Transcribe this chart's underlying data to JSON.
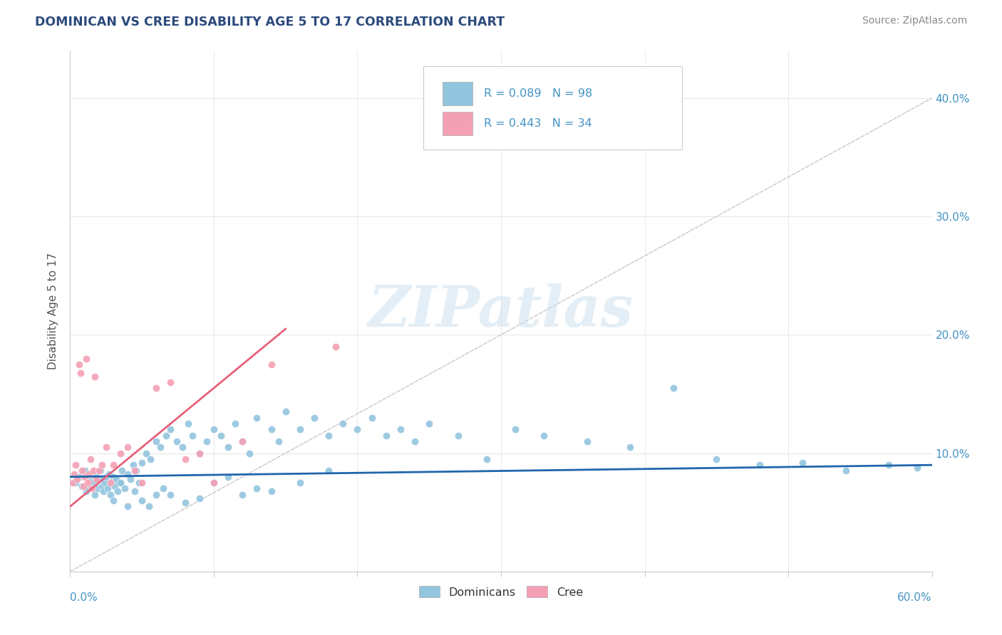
{
  "title": "DOMINICAN VS CREE DISABILITY AGE 5 TO 17 CORRELATION CHART",
  "source": "Source: ZipAtlas.com",
  "ylabel": "Disability Age 5 to 17",
  "xlim": [
    0.0,
    60.0
  ],
  "ylim": [
    0.0,
    44.0
  ],
  "legend_text1": "R = 0.089   N = 98",
  "legend_text2": "R = 0.443   N = 34",
  "dominican_color": "#92c5de",
  "cree_color": "#f4a0b4",
  "dominican_line_color": "#2166ac",
  "cree_line_color": "#e8607a",
  "ref_line_color": "#c8c8c8",
  "title_color": "#2c4a7c",
  "source_color": "#888888",
  "tick_label_color": "#4393c3",
  "legend_text_color": "#4393c3",
  "dominican_x": [
    0.4,
    0.6,
    0.8,
    1.0,
    1.1,
    1.2,
    1.4,
    1.5,
    1.6,
    1.7,
    1.8,
    1.9,
    2.0,
    2.1,
    2.2,
    2.3,
    2.4,
    2.5,
    2.6,
    2.7,
    2.8,
    2.9,
    3.0,
    3.1,
    3.2,
    3.3,
    3.5,
    3.6,
    3.8,
    4.0,
    4.2,
    4.4,
    4.6,
    4.8,
    5.0,
    5.3,
    5.6,
    6.0,
    6.3,
    6.7,
    7.0,
    7.4,
    7.8,
    8.2,
    8.5,
    9.0,
    9.5,
    10.0,
    10.5,
    11.0,
    11.5,
    12.0,
    12.5,
    13.0,
    14.0,
    14.5,
    15.0,
    16.0,
    17.0,
    18.0,
    19.0,
    20.0,
    21.0,
    22.0,
    23.0,
    24.0,
    25.0,
    27.0,
    29.0,
    31.0,
    33.0,
    36.0,
    39.0,
    42.0,
    45.0,
    48.0,
    51.0,
    54.0,
    57.0,
    59.0,
    3.0,
    3.5,
    4.0,
    4.5,
    5.0,
    5.5,
    6.0,
    6.5,
    7.0,
    8.0,
    9.0,
    10.0,
    11.0,
    12.0,
    13.0,
    14.0,
    16.0,
    18.0
  ],
  "dominican_y": [
    7.5,
    8.0,
    7.2,
    8.5,
    6.8,
    7.0,
    7.8,
    8.2,
    7.5,
    6.5,
    8.0,
    7.0,
    7.8,
    8.5,
    7.2,
    6.8,
    7.5,
    8.0,
    7.0,
    8.2,
    6.5,
    7.5,
    8.0,
    7.2,
    7.8,
    6.8,
    7.5,
    8.5,
    7.0,
    8.2,
    7.8,
    9.0,
    8.5,
    7.5,
    9.2,
    10.0,
    9.5,
    11.0,
    10.5,
    11.5,
    12.0,
    11.0,
    10.5,
    12.5,
    11.5,
    10.0,
    11.0,
    12.0,
    11.5,
    10.5,
    12.5,
    11.0,
    10.0,
    13.0,
    12.0,
    11.0,
    13.5,
    12.0,
    13.0,
    11.5,
    12.5,
    12.0,
    13.0,
    11.5,
    12.0,
    11.0,
    12.5,
    11.5,
    9.5,
    12.0,
    11.5,
    11.0,
    10.5,
    15.5,
    9.5,
    9.0,
    9.2,
    8.5,
    9.0,
    8.8,
    6.0,
    7.5,
    5.5,
    6.8,
    6.0,
    5.5,
    6.5,
    7.0,
    6.5,
    5.8,
    6.2,
    7.5,
    8.0,
    6.5,
    7.0,
    6.8,
    7.5,
    8.5
  ],
  "cree_x": [
    0.2,
    0.3,
    0.4,
    0.5,
    0.6,
    0.7,
    0.8,
    0.9,
    1.0,
    1.1,
    1.2,
    1.3,
    1.4,
    1.5,
    1.6,
    1.7,
    1.8,
    2.0,
    2.2,
    2.5,
    2.8,
    3.0,
    3.5,
    4.0,
    4.5,
    5.0,
    6.0,
    7.0,
    8.0,
    9.0,
    10.0,
    12.0,
    14.0,
    18.5
  ],
  "cree_y": [
    7.5,
    8.2,
    9.0,
    7.8,
    17.5,
    16.8,
    8.5,
    7.2,
    8.0,
    18.0,
    7.5,
    8.2,
    9.5,
    7.0,
    8.5,
    16.5,
    7.8,
    8.5,
    9.0,
    10.5,
    7.5,
    9.0,
    10.0,
    10.5,
    8.5,
    7.5,
    15.5,
    16.0,
    9.5,
    10.0,
    7.5,
    11.0,
    17.5,
    19.0
  ]
}
